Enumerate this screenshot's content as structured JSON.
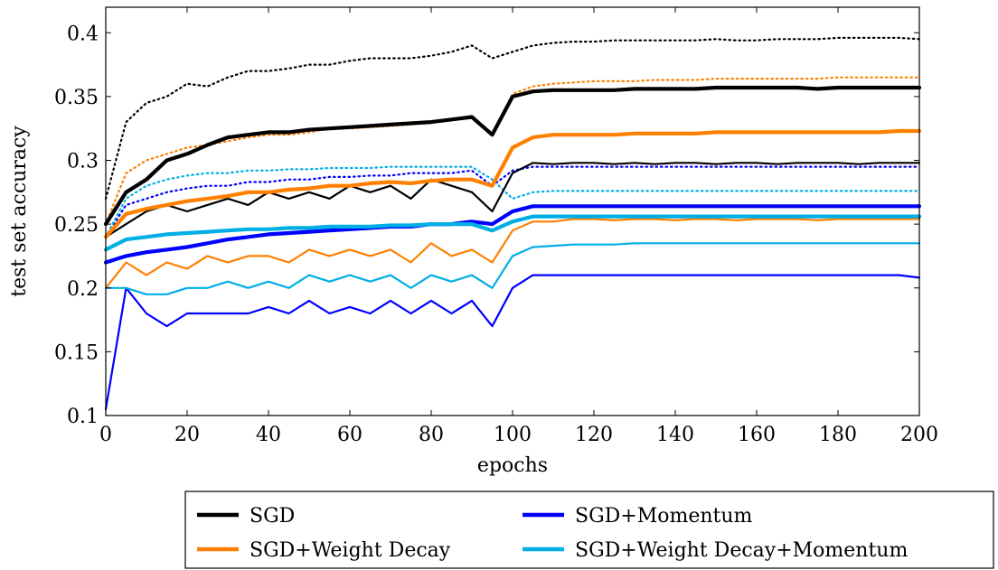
{
  "chart_data": {
    "type": "line",
    "xlabel": "epochs",
    "ylabel": "test set accuracy",
    "xlim": [
      0,
      200
    ],
    "ylim": [
      0.1,
      0.42
    ],
    "x_ticks": [
      0,
      20,
      40,
      60,
      80,
      100,
      120,
      140,
      160,
      180,
      200
    ],
    "y_ticks": [
      0.1,
      0.15,
      0.2,
      0.25,
      0.3,
      0.35,
      0.4
    ],
    "y_tick_labels": [
      "0.1",
      "0.15",
      "0.2",
      "0.25",
      "0.3",
      "0.35",
      "0.4"
    ],
    "grid": false,
    "legend_position": "below",
    "colors": {
      "SGD": "#000000",
      "SGD+Momentum": "#0000ff",
      "SGD+Weight Decay": "#ff8000",
      "SGD+Weight Decay+Momentum": "#00aee6"
    },
    "line_styles": [
      "thick",
      "thin",
      "dotted"
    ],
    "x": [
      0,
      5,
      10,
      15,
      20,
      25,
      30,
      35,
      40,
      45,
      50,
      55,
      60,
      65,
      70,
      75,
      80,
      85,
      90,
      95,
      100,
      105,
      110,
      115,
      120,
      125,
      130,
      135,
      140,
      145,
      150,
      155,
      160,
      165,
      170,
      175,
      180,
      185,
      190,
      195,
      200
    ],
    "series": [
      {
        "name": "SGD",
        "color": "#000000",
        "style": "thick",
        "values": [
          0.25,
          0.275,
          0.285,
          0.3,
          0.305,
          0.312,
          0.318,
          0.32,
          0.322,
          0.322,
          0.324,
          0.325,
          0.326,
          0.327,
          0.328,
          0.329,
          0.33,
          0.332,
          0.334,
          0.32,
          0.35,
          0.354,
          0.355,
          0.355,
          0.355,
          0.355,
          0.356,
          0.356,
          0.356,
          0.356,
          0.357,
          0.357,
          0.357,
          0.357,
          0.357,
          0.356,
          0.357,
          0.357,
          0.357,
          0.357,
          0.357
        ]
      },
      {
        "name": "",
        "color": "#000000",
        "style": "thin",
        "values": [
          0.24,
          0.25,
          0.26,
          0.265,
          0.26,
          0.265,
          0.27,
          0.265,
          0.275,
          0.27,
          0.275,
          0.27,
          0.28,
          0.275,
          0.28,
          0.27,
          0.285,
          0.28,
          0.275,
          0.26,
          0.29,
          0.298,
          0.297,
          0.298,
          0.298,
          0.297,
          0.298,
          0.297,
          0.298,
          0.298,
          0.297,
          0.298,
          0.298,
          0.297,
          0.298,
          0.298,
          0.298,
          0.297,
          0.298,
          0.298,
          0.298
        ]
      },
      {
        "name": "",
        "color": "#000000",
        "style": "dotted",
        "values": [
          0.27,
          0.33,
          0.345,
          0.35,
          0.36,
          0.358,
          0.365,
          0.37,
          0.37,
          0.372,
          0.375,
          0.375,
          0.378,
          0.38,
          0.38,
          0.38,
          0.382,
          0.385,
          0.39,
          0.38,
          0.385,
          0.39,
          0.392,
          0.393,
          0.393,
          0.394,
          0.394,
          0.394,
          0.394,
          0.394,
          0.395,
          0.394,
          0.394,
          0.395,
          0.395,
          0.395,
          0.396,
          0.396,
          0.396,
          0.396,
          0.395
        ]
      },
      {
        "name": "SGD+Weight Decay",
        "color": "#ff8000",
        "style": "thick",
        "values": [
          0.24,
          0.258,
          0.262,
          0.265,
          0.268,
          0.27,
          0.272,
          0.275,
          0.275,
          0.277,
          0.278,
          0.28,
          0.28,
          0.282,
          0.283,
          0.282,
          0.284,
          0.285,
          0.285,
          0.28,
          0.31,
          0.318,
          0.32,
          0.32,
          0.32,
          0.32,
          0.321,
          0.321,
          0.321,
          0.321,
          0.322,
          0.322,
          0.322,
          0.322,
          0.322,
          0.322,
          0.322,
          0.322,
          0.322,
          0.323,
          0.323
        ]
      },
      {
        "name": "",
        "color": "#ff8000",
        "style": "thin",
        "values": [
          0.2,
          0.22,
          0.21,
          0.22,
          0.215,
          0.225,
          0.22,
          0.225,
          0.225,
          0.22,
          0.23,
          0.225,
          0.23,
          0.225,
          0.23,
          0.22,
          0.235,
          0.225,
          0.23,
          0.22,
          0.245,
          0.252,
          0.252,
          0.254,
          0.254,
          0.253,
          0.254,
          0.254,
          0.253,
          0.254,
          0.254,
          0.253,
          0.254,
          0.254,
          0.254,
          0.253,
          0.254,
          0.254,
          0.254,
          0.254,
          0.254
        ]
      },
      {
        "name": "",
        "color": "#ff8000",
        "style": "dotted",
        "values": [
          0.25,
          0.29,
          0.3,
          0.305,
          0.31,
          0.312,
          0.315,
          0.318,
          0.32,
          0.32,
          0.322,
          0.325,
          0.325,
          0.326,
          0.327,
          0.328,
          0.33,
          0.332,
          0.333,
          0.32,
          0.352,
          0.358,
          0.36,
          0.361,
          0.362,
          0.362,
          0.362,
          0.363,
          0.363,
          0.363,
          0.364,
          0.364,
          0.364,
          0.364,
          0.364,
          0.364,
          0.365,
          0.365,
          0.365,
          0.365,
          0.365
        ]
      },
      {
        "name": "SGD+Momentum",
        "color": "#0000ff",
        "style": "thick",
        "values": [
          0.22,
          0.225,
          0.228,
          0.23,
          0.232,
          0.235,
          0.238,
          0.24,
          0.242,
          0.243,
          0.244,
          0.245,
          0.246,
          0.247,
          0.248,
          0.248,
          0.25,
          0.25,
          0.252,
          0.25,
          0.26,
          0.264,
          0.264,
          0.264,
          0.264,
          0.264,
          0.264,
          0.264,
          0.264,
          0.264,
          0.264,
          0.264,
          0.264,
          0.264,
          0.264,
          0.264,
          0.264,
          0.264,
          0.264,
          0.264,
          0.264
        ]
      },
      {
        "name": "",
        "color": "#0000ff",
        "style": "thin",
        "values": [
          0.105,
          0.2,
          0.18,
          0.17,
          0.18,
          0.18,
          0.18,
          0.18,
          0.185,
          0.18,
          0.19,
          0.18,
          0.185,
          0.18,
          0.19,
          0.18,
          0.19,
          0.18,
          0.19,
          0.17,
          0.2,
          0.21,
          0.21,
          0.21,
          0.21,
          0.21,
          0.21,
          0.21,
          0.21,
          0.21,
          0.21,
          0.21,
          0.21,
          0.21,
          0.21,
          0.21,
          0.21,
          0.21,
          0.21,
          0.21,
          0.208
        ]
      },
      {
        "name": "",
        "color": "#0000ff",
        "style": "dotted",
        "values": [
          0.24,
          0.265,
          0.27,
          0.275,
          0.278,
          0.28,
          0.28,
          0.283,
          0.283,
          0.285,
          0.285,
          0.287,
          0.287,
          0.288,
          0.288,
          0.29,
          0.29,
          0.29,
          0.292,
          0.28,
          0.292,
          0.295,
          0.295,
          0.295,
          0.295,
          0.295,
          0.295,
          0.295,
          0.295,
          0.295,
          0.295,
          0.295,
          0.295,
          0.295,
          0.295,
          0.295,
          0.295,
          0.295,
          0.295,
          0.295,
          0.295
        ]
      },
      {
        "name": "SGD+Weight Decay+Momentum",
        "color": "#00aee6",
        "style": "thick",
        "values": [
          0.23,
          0.238,
          0.24,
          0.242,
          0.243,
          0.244,
          0.245,
          0.246,
          0.246,
          0.247,
          0.247,
          0.248,
          0.248,
          0.248,
          0.249,
          0.249,
          0.25,
          0.25,
          0.25,
          0.245,
          0.252,
          0.256,
          0.256,
          0.256,
          0.256,
          0.256,
          0.256,
          0.256,
          0.256,
          0.256,
          0.256,
          0.256,
          0.256,
          0.256,
          0.256,
          0.256,
          0.256,
          0.256,
          0.256,
          0.256,
          0.256
        ]
      },
      {
        "name": "",
        "color": "#00aee6",
        "style": "thin",
        "values": [
          0.2,
          0.2,
          0.195,
          0.195,
          0.2,
          0.2,
          0.205,
          0.2,
          0.205,
          0.2,
          0.21,
          0.205,
          0.21,
          0.205,
          0.21,
          0.2,
          0.21,
          0.205,
          0.21,
          0.2,
          0.225,
          0.232,
          0.233,
          0.234,
          0.234,
          0.234,
          0.235,
          0.235,
          0.235,
          0.235,
          0.235,
          0.235,
          0.235,
          0.235,
          0.235,
          0.235,
          0.235,
          0.235,
          0.235,
          0.235,
          0.235
        ]
      },
      {
        "name": "",
        "color": "#00aee6",
        "style": "dotted",
        "values": [
          0.24,
          0.27,
          0.28,
          0.285,
          0.288,
          0.29,
          0.29,
          0.292,
          0.292,
          0.293,
          0.293,
          0.294,
          0.294,
          0.294,
          0.295,
          0.295,
          0.295,
          0.295,
          0.295,
          0.285,
          0.27,
          0.275,
          0.276,
          0.276,
          0.276,
          0.276,
          0.276,
          0.276,
          0.276,
          0.276,
          0.276,
          0.276,
          0.276,
          0.276,
          0.276,
          0.276,
          0.276,
          0.276,
          0.276,
          0.276,
          0.276
        ]
      }
    ],
    "legend": [
      {
        "label": "SGD",
        "color": "#000000"
      },
      {
        "label": "SGD+Momentum",
        "color": "#0000ff"
      },
      {
        "label": "SGD+Weight Decay",
        "color": "#ff8000"
      },
      {
        "label": "SGD+Weight Decay+Momentum",
        "color": "#00aee6"
      }
    ]
  }
}
